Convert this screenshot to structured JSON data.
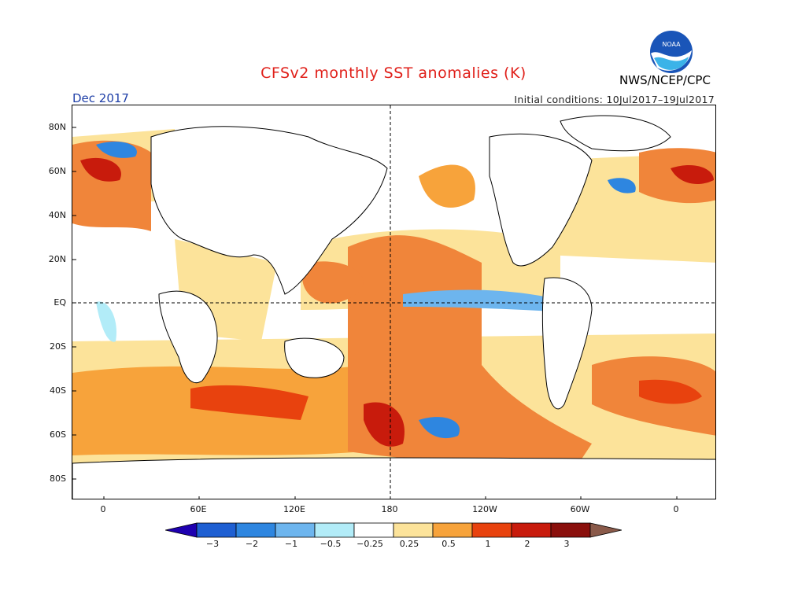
{
  "header": {
    "title": "CFSv2 monthly SST anomalies (K)",
    "month": "Dec 2017",
    "initial_conditions": "Initial conditions: 10Jul2017–19Jul2017",
    "org": "NWS/NCEP/CPC",
    "logo_text": "NOAA"
  },
  "axes": {
    "lat_labels": [
      "80N",
      "60N",
      "40N",
      "20N",
      "EQ",
      "20S",
      "40S",
      "60S",
      "80S"
    ],
    "lon_labels": [
      "0",
      "60E",
      "120E",
      "180",
      "120W",
      "60W",
      "0"
    ]
  },
  "colorbar": {
    "labels": [
      "−3",
      "−2",
      "−1",
      "−0.5",
      "−0.25",
      "0.25",
      "0.5",
      "1",
      "2",
      "3"
    ],
    "colors": [
      "#1e00b0",
      "#1e5fd2",
      "#2e86e0",
      "#6db5ee",
      "#b2ecf8",
      "#ffffff",
      "#fce39a",
      "#f7a33b",
      "#e8420e",
      "#c81b0c",
      "#8a0f0c",
      "#8a5a4a"
    ]
  },
  "colors": {
    "title": "#e0201a",
    "month": "#2040a8",
    "land": "#ffffff",
    "coast": "#000000"
  }
}
